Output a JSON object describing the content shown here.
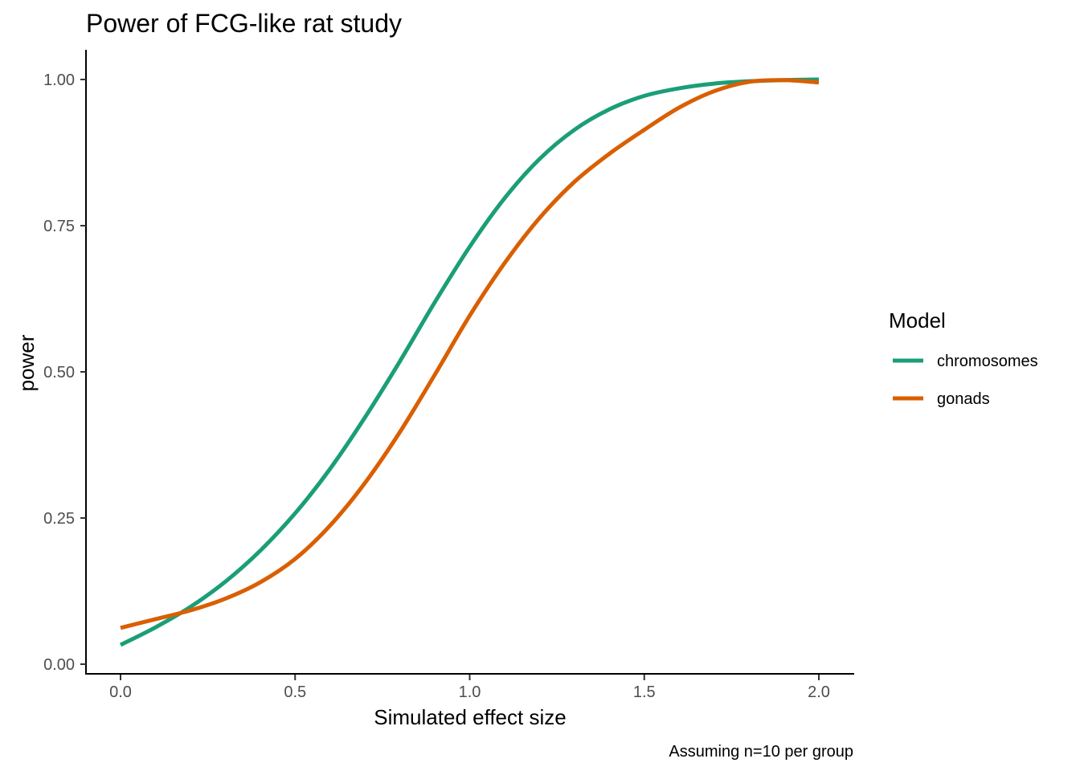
{
  "chart_data": {
    "type": "line",
    "title": "Power of FCG-like rat study",
    "caption": "Assuming n=10 per group",
    "xlabel": "Simulated effect size",
    "ylabel": "power",
    "xlim": [
      -0.1,
      2.1
    ],
    "ylim": [
      -0.02,
      1.05
    ],
    "x_ticks": [
      "0.0",
      "0.5",
      "1.0",
      "1.5",
      "2.0"
    ],
    "y_ticks": [
      "0.00",
      "0.25",
      "0.50",
      "0.75",
      "1.00"
    ],
    "grid": false,
    "legend": {
      "title": "Model",
      "position": "right"
    },
    "series": [
      {
        "name": "chromosomes",
        "color": "#1b9e77",
        "x": [
          0.0,
          0.1,
          0.2,
          0.3,
          0.4,
          0.5,
          0.6,
          0.7,
          0.8,
          0.9,
          1.0,
          1.1,
          1.2,
          1.3,
          1.4,
          1.5,
          1.6,
          1.7,
          1.8,
          1.9,
          2.0
        ],
        "y": [
          0.033,
          0.063,
          0.098,
          0.141,
          0.194,
          0.258,
          0.334,
          0.422,
          0.518,
          0.619,
          0.714,
          0.797,
          0.864,
          0.914,
          0.949,
          0.972,
          0.985,
          0.993,
          0.997,
          0.999,
          1.0
        ]
      },
      {
        "name": "gonads",
        "color": "#d95f02",
        "x": [
          0.0,
          0.1,
          0.2,
          0.3,
          0.4,
          0.5,
          0.6,
          0.7,
          0.8,
          0.9,
          1.0,
          1.1,
          1.2,
          1.3,
          1.4,
          1.5,
          1.6,
          1.7,
          1.8,
          1.9,
          2.0
        ],
        "y": [
          0.062,
          0.077,
          0.092,
          0.112,
          0.14,
          0.18,
          0.237,
          0.31,
          0.397,
          0.495,
          0.596,
          0.686,
          0.763,
          0.825,
          0.873,
          0.914,
          0.952,
          0.98,
          0.996,
          0.999,
          0.995
        ]
      }
    ]
  }
}
